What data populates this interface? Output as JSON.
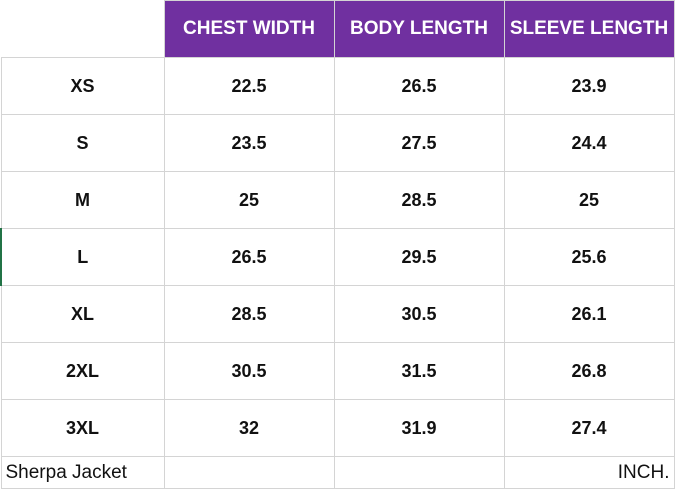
{
  "table": {
    "columns": [
      "CHEST WIDTH",
      "BODY LENGTH",
      "SLEEVE LENGTH"
    ],
    "rows": [
      [
        "XS",
        22.5,
        26.5,
        23.9
      ],
      [
        "S",
        23.5,
        27.5,
        24.4
      ],
      [
        "M",
        25,
        28.5,
        25
      ],
      [
        "L",
        26.5,
        29.5,
        25.6
      ],
      [
        "XL",
        28.5,
        30.5,
        26.1
      ],
      [
        "2XL",
        30.5,
        31.5,
        26.8
      ],
      [
        "3XL",
        32,
        31.9,
        27.4
      ]
    ],
    "footer": {
      "left": "Sherpa Jacket",
      "right": "INCH."
    }
  }
}
